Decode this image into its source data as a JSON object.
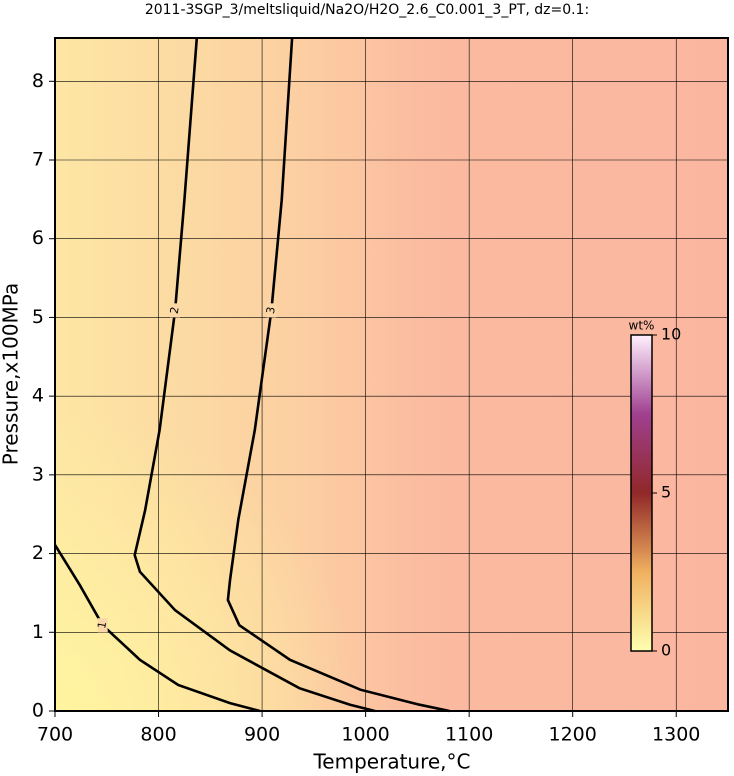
{
  "chart_data": {
    "type": "contour",
    "title": "2011-3SGP_3/meltsliquid/Na2O/H2O_2.6_C0.001_3_PT, dz=0.1:",
    "xlabel": "Temperature,°C",
    "ylabel": "Pressure,x100MPa",
    "xlim": [
      700,
      1350
    ],
    "ylim": [
      0,
      8.55
    ],
    "xticks": [
      700,
      800,
      900,
      1000,
      1100,
      1200,
      1300
    ],
    "yticks": [
      0,
      1,
      2,
      3,
      4,
      5,
      6,
      7,
      8
    ],
    "grid": true,
    "contours": [
      {
        "level": 1,
        "x": [
          700,
          724,
          746,
          782,
          819,
          869,
          898
        ],
        "y": [
          2.11,
          1.6,
          1.09,
          0.65,
          0.33,
          0.1,
          0
        ]
      },
      {
        "level": 2,
        "x": [
          837,
          825,
          816,
          801,
          787,
          777,
          782,
          816,
          869,
          936,
          985,
          1009
        ],
        "y": [
          8.55,
          6.49,
          5.09,
          3.57,
          2.55,
          1.98,
          1.77,
          1.28,
          0.77,
          0.29,
          0.08,
          0
        ]
      },
      {
        "level": 3,
        "x": [
          929,
          919,
          909,
          893,
          877,
          869,
          867,
          878,
          927,
          995,
          1052,
          1081
        ],
        "y": [
          8.55,
          6.49,
          5.09,
          3.57,
          2.43,
          1.66,
          1.41,
          1.09,
          0.65,
          0.27,
          0.08,
          0
        ]
      }
    ],
    "colorbar": {
      "label": "wt%",
      "lim": [
        0,
        10
      ],
      "ticks": [
        0,
        5,
        10
      ],
      "colors": [
        "#ffffb0",
        "#f0b060",
        "#902828",
        "#a04090",
        "#fff0ff"
      ]
    }
  }
}
